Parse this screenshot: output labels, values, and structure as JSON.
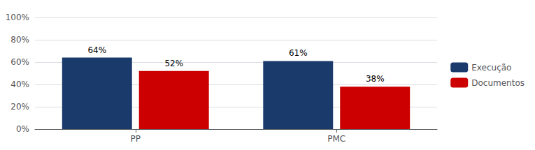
{
  "chart_data": {
    "type": "bar",
    "categories": [
      "PP",
      "PMC"
    ],
    "series": [
      {
        "name": "Execução",
        "color": "#1a3a6b",
        "values": [
          64,
          61
        ],
        "value_labels": [
          "64%",
          "61%"
        ]
      },
      {
        "name": "Documentos",
        "color": "#cc0000",
        "values": [
          52,
          38
        ],
        "value_labels": [
          "52%",
          "38%"
        ]
      }
    ],
    "ylim": [
      0,
      100
    ],
    "yticks": [
      {
        "value": 0,
        "label": "0%"
      },
      {
        "value": 20,
        "label": "20%"
      },
      {
        "value": 40,
        "label": "40%"
      },
      {
        "value": 60,
        "label": "60%"
      },
      {
        "value": 80,
        "label": "80%"
      },
      {
        "value": 100,
        "label": "100%"
      }
    ],
    "grid": true,
    "legend": "right",
    "data_labels": true
  }
}
